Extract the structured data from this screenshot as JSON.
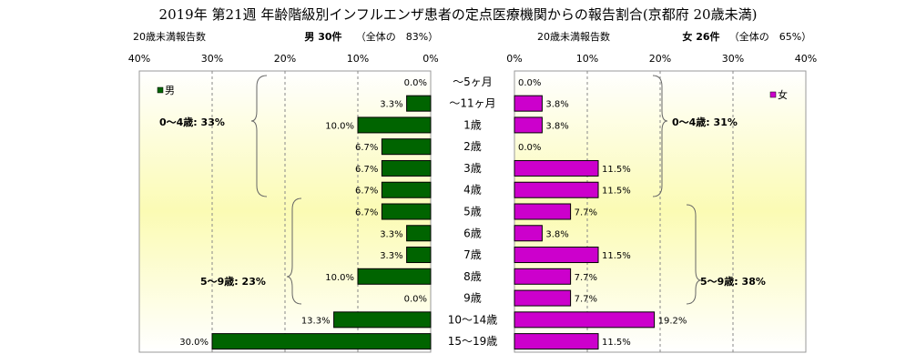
{
  "title": "2019年 第21週 年齢階級別インフルエンザ患者の定点医療機関からの報告割合(京都府 20歳未満)",
  "chart_data": {
    "type": "bar",
    "orientation": "horizontal-pyramid",
    "categories": [
      "～5ヶ月",
      "～11ヶ月",
      "1歳",
      "2歳",
      "3歳",
      "4歳",
      "5歳",
      "6歳",
      "7歳",
      "8歳",
      "9歳",
      "10～14歳",
      "15～19歳"
    ],
    "xlim": [
      0,
      40
    ],
    "x_ticks": [
      "40%",
      "30%",
      "20%",
      "10%",
      "0%"
    ],
    "x_ticks_right": [
      "0%",
      "10%",
      "20%",
      "30%",
      "40%"
    ],
    "grid": true,
    "series": [
      {
        "name": "男",
        "side": "left",
        "color": "#006400",
        "values": [
          0.0,
          3.3,
          10.0,
          6.7,
          6.7,
          6.7,
          6.7,
          3.3,
          3.3,
          10.0,
          0.0,
          13.3,
          30.0
        ],
        "value_labels": [
          "0.0%",
          "3.3%",
          "10.0%",
          "6.7%",
          "6.7%",
          "6.7%",
          "6.7%",
          "3.3%",
          "3.3%",
          "10.0%",
          "0.0%",
          "13.3%",
          "30.0%"
        ]
      },
      {
        "name": "女",
        "side": "right",
        "color": "#cc00cc",
        "values": [
          0.0,
          3.8,
          3.8,
          0.0,
          11.5,
          11.5,
          7.7,
          3.8,
          11.5,
          7.7,
          7.7,
          19.2,
          11.5
        ],
        "value_labels": [
          "0.0%",
          "3.8%",
          "3.8%",
          "0.0%",
          "11.5%",
          "11.5%",
          "7.7%",
          "3.8%",
          "11.5%",
          "7.7%",
          "7.7%",
          "19.2%",
          "11.5%"
        ]
      }
    ],
    "left_header": {
      "axis_caption": "20歳未満報告数",
      "count_label": "男 30件",
      "share_label": "（全体の　83%）"
    },
    "right_header": {
      "axis_caption": "20歳未満報告数",
      "count_label": "女 26件",
      "share_label": "（全体の　65%）"
    },
    "annotations": {
      "left_0_4": "0～4歳: 33%",
      "left_5_9": "5～9歳: 23%",
      "right_0_4": "0～4歳: 31%",
      "right_5_9": "5～9歳: 38%"
    }
  }
}
